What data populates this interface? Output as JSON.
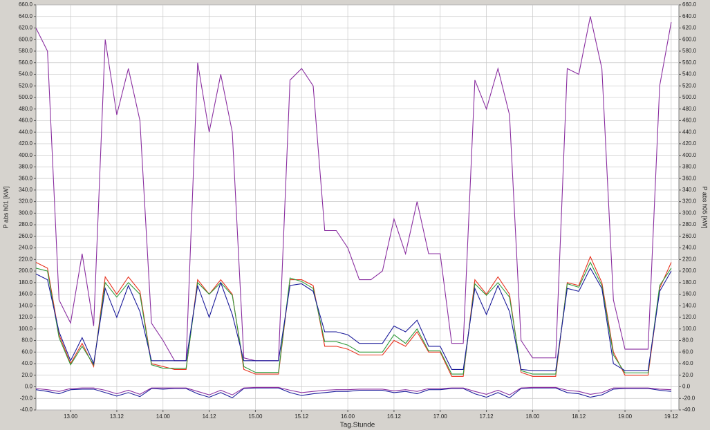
{
  "chart_data": {
    "type": "line",
    "x_label": "Tag.Stunde",
    "y_label": "P abs h01 [kW]",
    "y2_label": "P abs h05 [kW]",
    "grid": true,
    "xlim": [
      -9,
      158
    ],
    "xticks": [
      {
        "value": 0,
        "label": "13.00"
      },
      {
        "value": 12,
        "label": "13.12"
      },
      {
        "value": 24,
        "label": "14.00"
      },
      {
        "value": 36,
        "label": "14.12"
      },
      {
        "value": 48,
        "label": "15.00"
      },
      {
        "value": 60,
        "label": "15.12"
      },
      {
        "value": 72,
        "label": "16.00"
      },
      {
        "value": 84,
        "label": "16.12"
      },
      {
        "value": 96,
        "label": "17.00"
      },
      {
        "value": 108,
        "label": "17.12"
      },
      {
        "value": 120,
        "label": "18.00"
      },
      {
        "value": 132,
        "label": "18.12"
      },
      {
        "value": 144,
        "label": "19.00"
      },
      {
        "value": 156,
        "label": "19.12"
      }
    ],
    "ylim": [
      -40,
      660
    ],
    "yticks": [
      {
        "value": -40,
        "label": "-40.0"
      },
      {
        "value": -20,
        "label": "-20.0"
      },
      {
        "value": 0,
        "label": "0.0"
      },
      {
        "value": 20,
        "label": "20.0"
      },
      {
        "value": 40,
        "label": "40.0"
      },
      {
        "value": 60,
        "label": "60.0"
      },
      {
        "value": 80,
        "label": "80.0"
      },
      {
        "value": 100,
        "label": "100.0"
      },
      {
        "value": 120,
        "label": "120.0"
      },
      {
        "value": 140,
        "label": "140.0"
      },
      {
        "value": 160,
        "label": "160.0"
      },
      {
        "value": 180,
        "label": "180.0"
      },
      {
        "value": 200,
        "label": "200.0"
      },
      {
        "value": 220,
        "label": "220.0"
      },
      {
        "value": 240,
        "label": "240.0"
      },
      {
        "value": 260,
        "label": "260.0"
      },
      {
        "value": 280,
        "label": "280.0"
      },
      {
        "value": 300,
        "label": "300.0"
      },
      {
        "value": 320,
        "label": "320.0"
      },
      {
        "value": 340,
        "label": "340.0"
      },
      {
        "value": 360,
        "label": "360.0"
      },
      {
        "value": 380,
        "label": "380.0"
      },
      {
        "value": 400,
        "label": "400.0"
      },
      {
        "value": 420,
        "label": "420.0"
      },
      {
        "value": 440,
        "label": "440.0"
      },
      {
        "value": 460,
        "label": "460.0"
      },
      {
        "value": 480,
        "label": "480.0"
      },
      {
        "value": 500,
        "label": "500.0"
      },
      {
        "value": 520,
        "label": "520.0"
      },
      {
        "value": 540,
        "label": "540.0"
      },
      {
        "value": 560,
        "label": "560.0"
      },
      {
        "value": 580,
        "label": "580.0"
      },
      {
        "value": 600,
        "label": "600.0"
      },
      {
        "value": 620,
        "label": "620.0"
      },
      {
        "value": 640,
        "label": "640.0"
      },
      {
        "value": 660,
        "label": "660.0"
      }
    ],
    "y2lim": [
      -40,
      660
    ],
    "y2ticks": [
      {
        "value": -40,
        "label": "-40.0"
      },
      {
        "value": -20,
        "label": "-20.0"
      },
      {
        "value": 0,
        "label": "0.0"
      },
      {
        "value": 20,
        "label": "20.0"
      },
      {
        "value": 40,
        "label": "40.0"
      },
      {
        "value": 60,
        "label": "60.0"
      },
      {
        "value": 80,
        "label": "80.0"
      },
      {
        "value": 100,
        "label": "100.0"
      },
      {
        "value": 120,
        "label": "120.0"
      },
      {
        "value": 140,
        "label": "140.0"
      },
      {
        "value": 160,
        "label": "160.0"
      },
      {
        "value": 180,
        "label": "180.0"
      },
      {
        "value": 200,
        "label": "200.0"
      },
      {
        "value": 220,
        "label": "220.0"
      },
      {
        "value": 240,
        "label": "240.0"
      },
      {
        "value": 260,
        "label": "260.0"
      },
      {
        "value": 280,
        "label": "280.0"
      },
      {
        "value": 300,
        "label": "300.0"
      },
      {
        "value": 320,
        "label": "320.0"
      },
      {
        "value": 340,
        "label": "340.0"
      },
      {
        "value": 360,
        "label": "360.0"
      },
      {
        "value": 380,
        "label": "380.0"
      },
      {
        "value": 400,
        "label": "400.0"
      },
      {
        "value": 420,
        "label": "420.0"
      },
      {
        "value": 440,
        "label": "440.0"
      },
      {
        "value": 460,
        "label": "460.0"
      },
      {
        "value": 480,
        "label": "480.0"
      },
      {
        "value": 500,
        "label": "500.0"
      },
      {
        "value": 520,
        "label": "520.0"
      },
      {
        "value": 540,
        "label": "540.0"
      },
      {
        "value": 560,
        "label": "560.0"
      },
      {
        "value": 580,
        "label": "580.0"
      },
      {
        "value": 600,
        "label": "600.0"
      },
      {
        "value": 620,
        "label": "620.0"
      },
      {
        "value": 640,
        "label": "640.0"
      },
      {
        "value": 660,
        "label": "660.0"
      }
    ],
    "x": [
      -9,
      -6,
      -3,
      0,
      3,
      6,
      9,
      12,
      15,
      18,
      21,
      24,
      27,
      30,
      33,
      36,
      39,
      42,
      45,
      48,
      51,
      54,
      57,
      60,
      63,
      66,
      69,
      72,
      75,
      78,
      81,
      84,
      87,
      90,
      93,
      96,
      99,
      102,
      105,
      108,
      111,
      114,
      117,
      120,
      123,
      126,
      129,
      132,
      135,
      138,
      141,
      144,
      147,
      150,
      153,
      156
    ],
    "series": [
      {
        "color": "#8a2ea0",
        "values": [
          620,
          580,
          150,
          110,
          230,
          105,
          600,
          470,
          550,
          460,
          110,
          80,
          45,
          45,
          560,
          440,
          540,
          440,
          50,
          45,
          45,
          45,
          530,
          550,
          520,
          270,
          270,
          240,
          185,
          185,
          200,
          290,
          230,
          320,
          230,
          230,
          75,
          75,
          530,
          480,
          550,
          470,
          80,
          50,
          50,
          50,
          550,
          540,
          640,
          550,
          150,
          65,
          65,
          65,
          520,
          630
        ]
      },
      {
        "color": "#e8321e",
        "values": [
          215,
          205,
          90,
          40,
          75,
          35,
          190,
          160,
          190,
          165,
          40,
          35,
          30,
          30,
          185,
          160,
          185,
          160,
          30,
          22,
          22,
          22,
          185,
          185,
          175,
          70,
          70,
          65,
          55,
          55,
          55,
          80,
          70,
          95,
          60,
          60,
          18,
          18,
          185,
          160,
          190,
          160,
          25,
          18,
          18,
          18,
          180,
          175,
          225,
          180,
          60,
          20,
          20,
          20,
          170,
          215
        ]
      },
      {
        "color": "#2e9a3a",
        "values": [
          205,
          200,
          85,
          38,
          70,
          38,
          180,
          155,
          180,
          160,
          38,
          32,
          32,
          32,
          180,
          160,
          180,
          158,
          35,
          25,
          25,
          25,
          188,
          182,
          170,
          78,
          78,
          72,
          60,
          60,
          60,
          90,
          75,
          100,
          62,
          62,
          22,
          22,
          178,
          158,
          180,
          155,
          28,
          22,
          22,
          22,
          178,
          172,
          215,
          175,
          55,
          24,
          24,
          24,
          175,
          205
        ]
      },
      {
        "color": "#1a1a9a",
        "values": [
          195,
          185,
          95,
          45,
          85,
          40,
          170,
          120,
          175,
          130,
          45,
          45,
          45,
          45,
          175,
          120,
          180,
          125,
          45,
          45,
          45,
          45,
          175,
          178,
          165,
          95,
          95,
          90,
          75,
          75,
          75,
          105,
          95,
          115,
          70,
          70,
          30,
          30,
          170,
          125,
          175,
          130,
          30,
          28,
          28,
          28,
          170,
          165,
          205,
          170,
          40,
          28,
          28,
          28,
          165,
          200
        ]
      },
      {
        "color": "#1a1a9a",
        "values": [
          -5,
          -8,
          -12,
          -5,
          -4,
          -4,
          -10,
          -16,
          -10,
          -17,
          -3,
          -4,
          -3,
          -3,
          -12,
          -18,
          -10,
          -19,
          -3,
          -2,
          -2,
          -2,
          -10,
          -15,
          -12,
          -10,
          -8,
          -8,
          -6,
          -6,
          -6,
          -10,
          -8,
          -12,
          -5,
          -5,
          -3,
          -3,
          -12,
          -18,
          -10,
          -19,
          -3,
          -2,
          -2,
          -2,
          -10,
          -12,
          -18,
          -14,
          -4,
          -3,
          -3,
          -3,
          -6,
          -8
        ]
      },
      {
        "color": "#8a2ea0",
        "values": [
          -3,
          -5,
          -8,
          -3,
          -2,
          -2,
          -6,
          -12,
          -6,
          -13,
          -2,
          -2,
          -2,
          -2,
          -8,
          -14,
          -6,
          -14,
          -2,
          -1,
          -1,
          -1,
          -6,
          -10,
          -8,
          -6,
          -5,
          -5,
          -4,
          -4,
          -4,
          -7,
          -5,
          -8,
          -3,
          -3,
          -2,
          -2,
          -8,
          -13,
          -6,
          -14,
          -2,
          -1,
          -1,
          -1,
          -6,
          -8,
          -13,
          -10,
          -2,
          -2,
          -2,
          -2,
          -4,
          -5
        ]
      }
    ]
  }
}
